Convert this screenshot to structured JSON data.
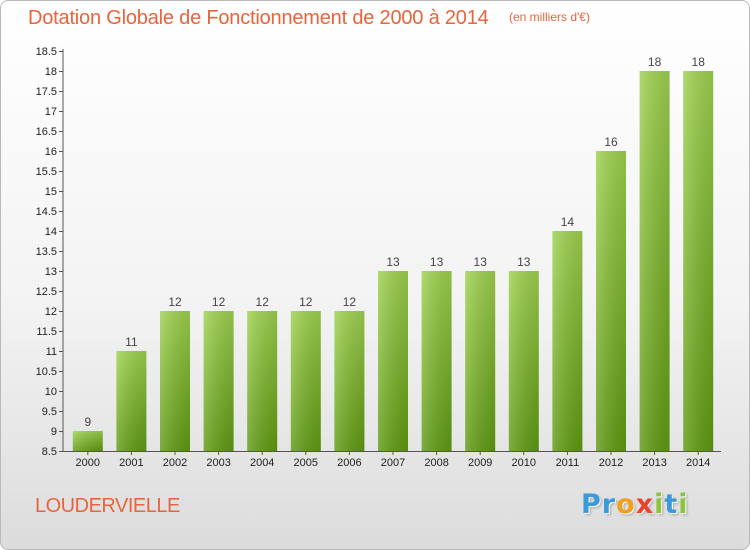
{
  "chart_data": {
    "type": "bar",
    "title": "Dotation Globale de Fonctionnement de 2000 à 2014",
    "unit_label": "(en milliers d'€)",
    "categories": [
      "2000",
      "2001",
      "2002",
      "2003",
      "2004",
      "2005",
      "2006",
      "2007",
      "2008",
      "2009",
      "2010",
      "2011",
      "2012",
      "2013",
      "2014"
    ],
    "values": [
      9,
      11,
      12,
      12,
      12,
      12,
      12,
      13,
      13,
      13,
      13,
      14,
      16,
      18,
      18
    ],
    "ylim": [
      8.5,
      18.5
    ],
    "yticks": [
      "8.5",
      "9",
      "9.5",
      "10",
      "10.5",
      "11",
      "11.5",
      "12",
      "12.5",
      "13",
      "13.5",
      "14",
      "14.5",
      "15",
      "15.5",
      "16",
      "16.5",
      "17",
      "17.5",
      "18",
      "18.5"
    ],
    "xlabel": "",
    "ylabel": "",
    "grid": false,
    "legend": "none",
    "colors": {
      "bar_top": "#9fd24f",
      "bar_bottom": "#5f9a12",
      "title": "#e8643c"
    }
  },
  "commune": "LOUDERVIELLE",
  "logo": {
    "letters": [
      {
        "char": "P",
        "color": "#3a9ad9"
      },
      {
        "char": "r",
        "color": "#3a9ad9"
      },
      {
        "char": "o",
        "color": "#f0a020"
      },
      {
        "char": "x",
        "color": "#e8442c"
      },
      {
        "char": "i",
        "color": "#8cc43c"
      },
      {
        "char": "t",
        "color": "#3a9ad9"
      },
      {
        "char": "i",
        "color": "#8cc43c"
      }
    ]
  }
}
